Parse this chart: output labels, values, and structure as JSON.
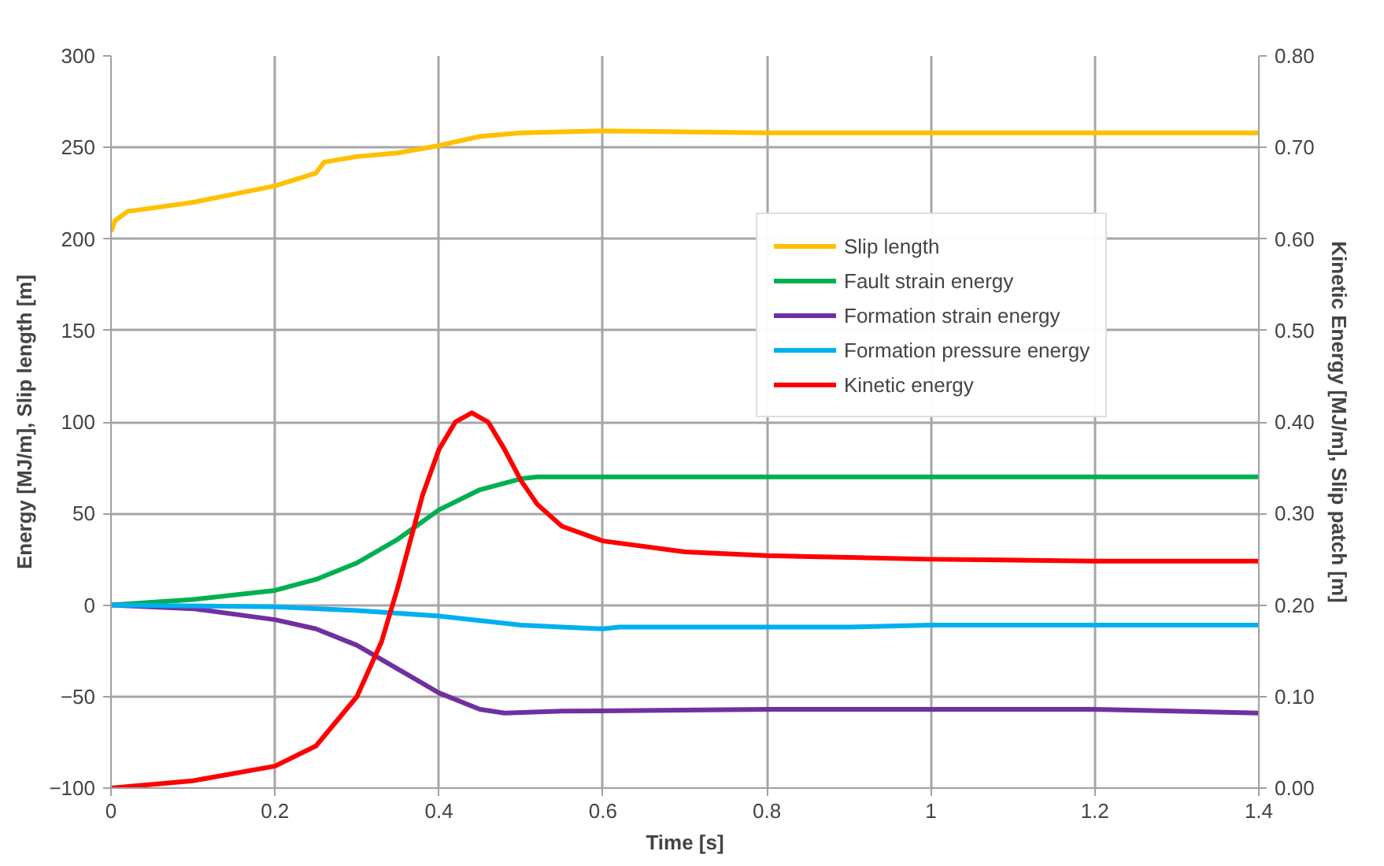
{
  "chart_data": {
    "type": "line",
    "xlabel": "Time [s]",
    "ylabel": "Energy [MJ/m], Slip length [m]",
    "y2label": "Kinetic Energy [MJ/m], Slip patch [m]",
    "xlim": [
      0,
      1.4
    ],
    "xticks": [
      0,
      0.2,
      0.4,
      0.6,
      0.8,
      1,
      1.2,
      1.4
    ],
    "ylim": [
      -100,
      300
    ],
    "yticks": [
      -100,
      -50,
      0,
      50,
      100,
      150,
      200,
      250,
      300
    ],
    "y2lim": [
      0,
      0.8
    ],
    "y2ticks": [
      {
        "value": 0,
        "label": "0.00"
      },
      {
        "value": 0.1,
        "label": "0.10"
      },
      {
        "value": 0.2,
        "label": "0.20"
      },
      {
        "value": 0.3,
        "label": "0.30"
      },
      {
        "value": 0.4,
        "label": "0.40"
      },
      {
        "value": 0.5,
        "label": "0.50"
      },
      {
        "value": 0.6,
        "label": "0.60"
      },
      {
        "value": 0.7,
        "label": "0.70"
      },
      {
        "value": 0.8,
        "label": "0.80"
      }
    ],
    "grid": true,
    "legend": "top right",
    "marker": "none",
    "line_style": "solid",
    "series": [
      {
        "name": "Slip length",
        "color": "#ffc000",
        "x": [
          0,
          0.005,
          0.02,
          0.1,
          0.2,
          0.25,
          0.26,
          0.3,
          0.35,
          0.4,
          0.45,
          0.5,
          0.6,
          0.8,
          1.0,
          1.4
        ],
        "values": [
          204,
          210,
          215,
          220,
          229,
          236,
          242,
          245,
          247,
          251,
          256,
          258,
          259,
          258,
          258,
          258
        ]
      },
      {
        "name": "Fault strain energy",
        "color": "#00b050",
        "x": [
          0,
          0.1,
          0.2,
          0.25,
          0.3,
          0.35,
          0.4,
          0.45,
          0.5,
          0.52,
          1.4
        ],
        "values": [
          0,
          3,
          8,
          14,
          23,
          36,
          52,
          63,
          69,
          70,
          70
        ]
      },
      {
        "name": "Formation strain energy",
        "color": "#7030a0",
        "x": [
          0,
          0.1,
          0.2,
          0.25,
          0.3,
          0.35,
          0.4,
          0.45,
          0.48,
          0.55,
          0.8,
          1.2,
          1.4
        ],
        "values": [
          0,
          -2,
          -8,
          -13,
          -22,
          -35,
          -48,
          -57,
          -59,
          -58,
          -57,
          -57,
          -59
        ]
      },
      {
        "name": "Formation pressure energy",
        "color": "#00b0f0",
        "x": [
          0,
          0.2,
          0.3,
          0.4,
          0.5,
          0.55,
          0.6,
          0.62,
          0.9,
          1.0,
          1.4
        ],
        "values": [
          0,
          -1,
          -3,
          -6,
          -11,
          -12,
          -13,
          -12,
          -12,
          -11,
          -11
        ]
      },
      {
        "name": "Kinetic energy",
        "color": "#ff0000",
        "axis": "y2",
        "x": [
          0,
          0.1,
          0.2,
          0.25,
          0.3,
          0.33,
          0.35,
          0.38,
          0.4,
          0.42,
          0.44,
          0.46,
          0.48,
          0.5,
          0.52,
          0.55,
          0.6,
          0.7,
          0.8,
          0.9,
          1.0,
          1.2,
          1.4
        ],
        "values": [
          0,
          0.008,
          0.024,
          0.046,
          0.1,
          0.16,
          0.22,
          0.32,
          0.37,
          0.4,
          0.41,
          0.4,
          0.37,
          0.336,
          0.31,
          0.286,
          0.27,
          0.258,
          0.254,
          0.252,
          0.25,
          0.248,
          0.248
        ]
      }
    ]
  }
}
